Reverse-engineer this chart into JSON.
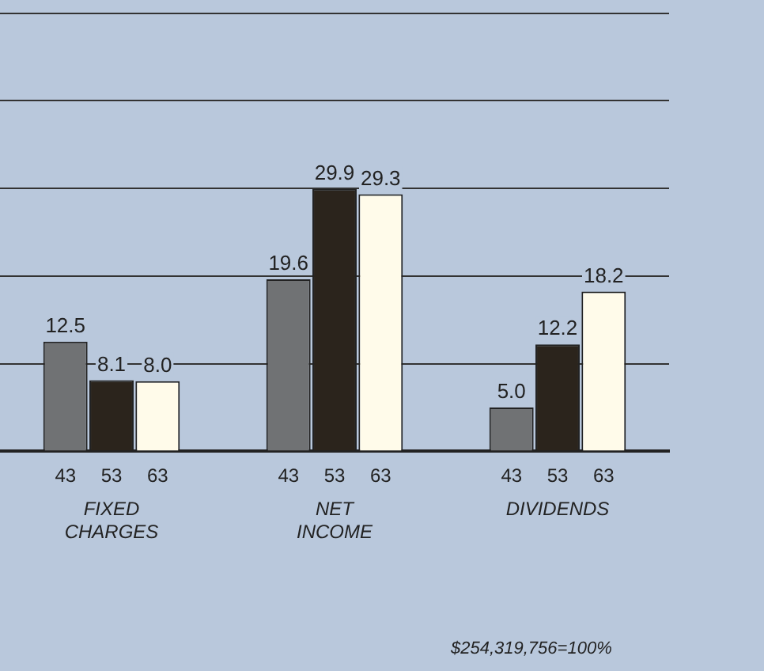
{
  "chart_data": {
    "type": "bar",
    "categories": [
      "FIXED CHARGES",
      "NET INCOME",
      "DIVIDENDS"
    ],
    "series": [
      {
        "name": "43",
        "color": "#707274",
        "values": [
          12.5,
          19.6,
          5.0
        ],
        "value_labels": [
          "12.5",
          "19.6",
          "5.0"
        ]
      },
      {
        "name": "53",
        "color": "#2b241c",
        "values": [
          8.1,
          29.9,
          12.2
        ],
        "value_labels": [
          "8.1",
          "29.9",
          "12.2"
        ]
      },
      {
        "name": "63",
        "color": "#fffbea",
        "values": [
          8.0,
          29.3,
          18.2
        ],
        "value_labels": [
          "8.0",
          "29.3",
          "18.2"
        ]
      }
    ],
    "ylim": [
      0,
      50
    ],
    "yticks": [
      {
        "value": 0,
        "label": null
      },
      {
        "value": 10,
        "label": null
      },
      {
        "value": 20,
        "label": null
      },
      {
        "value": 30,
        "label": null
      },
      {
        "value": 40,
        "label": null
      }
    ],
    "tick_labels": "x",
    "grid": "y",
    "legend": false,
    "annotations": [
      "$254,319,756=100%"
    ]
  }
}
